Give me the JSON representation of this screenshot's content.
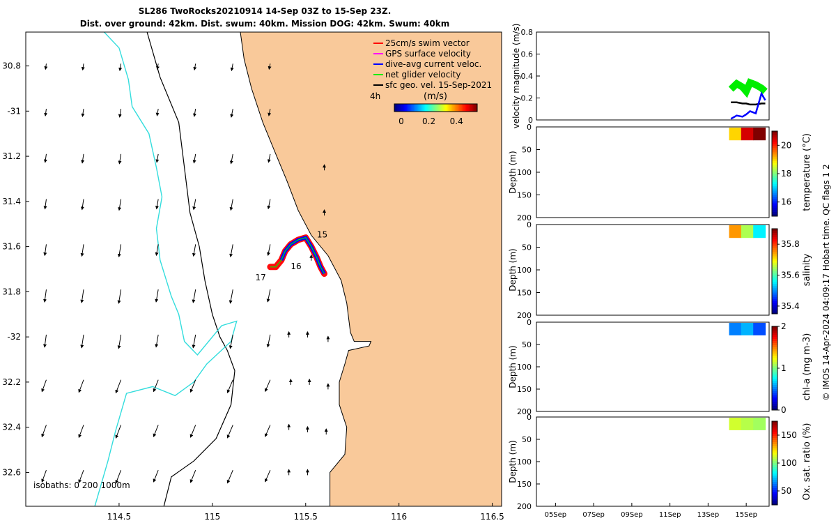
{
  "header": {
    "title": "SL286 TwoRocks20210914 14-Sep 03Z to 15-Sep 23Z.",
    "subtitle": "Dist. over ground: 42km. Dist. swum: 40km. Mission DOG: 42km. Swum: 40km"
  },
  "side_note": "© IMOS 14-Apr-2024 04:09:17 Hobart time. QC flags 1  2",
  "colors": {
    "land": "#f9c99a",
    "isobath_200": "#000000",
    "isobath_1000": "#33dddd",
    "swim": "#ff0000",
    "gps": "#ff00ff",
    "dive": "#0000ff",
    "net": "#00ee00",
    "sfc": "#000000"
  },
  "chart_data": [
    {
      "type": "map",
      "x_ticks": [
        114.5,
        115,
        115.5,
        116,
        116.5
      ],
      "x_tick_labels": [
        "114.5",
        "115",
        "115.5",
        "116",
        "116.5"
      ],
      "y_ticks": [
        -30.8,
        -31,
        -31.2,
        -31.4,
        -31.6,
        -31.8,
        -32,
        -32.2,
        -32.4,
        -32.6
      ],
      "y_tick_labels": [
        "30.8",
        "-31",
        "31.2",
        "31.4",
        "31.6",
        "31.8",
        "-32",
        "32.2",
        "32.4",
        "32.6"
      ],
      "xlim": [
        114.0,
        116.55
      ],
      "ylim": [
        -32.75,
        -30.65
      ],
      "legend": [
        {
          "label": "25cm/s swim vector",
          "color": "#ff0000"
        },
        {
          "label": "GPS surface velocity",
          "color": "#ff00ff"
        },
        {
          "label": "dive-avg current veloc.",
          "color": "#0000ff"
        },
        {
          "label": "net glider velocity",
          "color": "#00ee00"
        },
        {
          "label": "sfc geo. vel. 15-Sep-2021",
          "color": "#000000"
        }
      ],
      "legend_placement": "top-right",
      "time_label": "4h",
      "colorbar": {
        "label": "(m/s)",
        "ticks": [
          0,
          0.2,
          0.4
        ],
        "tick_labels": [
          "0",
          "0.2",
          "0.4"
        ],
        "range": [
          0,
          0.5
        ]
      },
      "isobath_label": "isobaths: 0   200  1000m",
      "day_labels": [
        {
          "text": "15",
          "lon": 115.56,
          "lat": -31.56
        },
        {
          "text": "16",
          "lon": 115.42,
          "lat": -31.7
        },
        {
          "text": "17",
          "lon": 115.23,
          "lat": -31.75
        }
      ],
      "track": [
        [
          115.6,
          -31.72
        ],
        [
          115.58,
          -31.69
        ],
        [
          115.56,
          -31.65
        ],
        [
          115.53,
          -31.6
        ],
        [
          115.5,
          -31.56
        ],
        [
          115.46,
          -31.57
        ],
        [
          115.42,
          -31.59
        ],
        [
          115.39,
          -31.62
        ],
        [
          115.37,
          -31.66
        ],
        [
          115.34,
          -31.69
        ],
        [
          115.31,
          -31.69
        ]
      ],
      "coast": [
        [
          115.15,
          -30.65
        ],
        [
          115.17,
          -30.77
        ],
        [
          115.21,
          -30.9
        ],
        [
          115.27,
          -31.05
        ],
        [
          115.33,
          -31.17
        ],
        [
          115.4,
          -31.31
        ],
        [
          115.46,
          -31.44
        ],
        [
          115.53,
          -31.55
        ],
        [
          115.62,
          -31.64
        ],
        [
          115.69,
          -31.75
        ],
        [
          115.72,
          -31.85
        ],
        [
          115.74,
          -31.98
        ],
        [
          115.76,
          -32.02
        ],
        [
          115.85,
          -32.02
        ],
        [
          115.84,
          -32.04
        ],
        [
          115.73,
          -32.06
        ],
        [
          115.71,
          -32.12
        ],
        [
          115.68,
          -32.2
        ],
        [
          115.68,
          -32.3
        ],
        [
          115.72,
          -32.4
        ],
        [
          115.71,
          -32.52
        ],
        [
          115.63,
          -32.6
        ],
        [
          115.63,
          -32.75
        ]
      ],
      "iso200": [
        [
          114.65,
          -30.65
        ],
        [
          114.72,
          -30.85
        ],
        [
          114.82,
          -31.05
        ],
        [
          114.85,
          -31.25
        ],
        [
          114.88,
          -31.45
        ],
        [
          114.93,
          -31.6
        ],
        [
          114.96,
          -31.75
        ],
        [
          115.0,
          -31.9
        ],
        [
          115.04,
          -32.0
        ],
        [
          115.08,
          -32.06
        ],
        [
          115.12,
          -32.15
        ],
        [
          115.1,
          -32.3
        ],
        [
          115.02,
          -32.45
        ],
        [
          114.9,
          -32.55
        ],
        [
          114.78,
          -32.62
        ],
        [
          114.74,
          -32.75
        ]
      ],
      "iso1000": [
        [
          114.42,
          -30.65
        ],
        [
          114.5,
          -30.72
        ],
        [
          114.55,
          -30.86
        ],
        [
          114.57,
          -30.98
        ],
        [
          114.66,
          -31.1
        ],
        [
          114.7,
          -31.25
        ],
        [
          114.73,
          -31.38
        ],
        [
          114.7,
          -31.52
        ],
        [
          114.72,
          -31.66
        ],
        [
          114.78,
          -31.82
        ],
        [
          114.82,
          -31.9
        ],
        [
          114.85,
          -32.02
        ],
        [
          114.92,
          -32.08
        ],
        [
          115.05,
          -31.95
        ],
        [
          115.13,
          -31.93
        ],
        [
          115.1,
          -32.02
        ],
        [
          114.97,
          -32.12
        ],
        [
          114.9,
          -32.2
        ],
        [
          114.8,
          -32.26
        ],
        [
          114.68,
          -32.22
        ],
        [
          114.54,
          -32.25
        ],
        [
          114.48,
          -32.42
        ],
        [
          114.44,
          -32.55
        ],
        [
          114.37,
          -32.75
        ]
      ]
    },
    {
      "type": "line",
      "ylabel": "velocity magnitude (m/s)",
      "ylim": [
        0,
        0.8
      ],
      "y_ticks": [
        0,
        0.2,
        0.4,
        0.6,
        0.8
      ],
      "y_tick_labels": [
        "0",
        "0.2",
        "0.4",
        "0.6",
        "0.8"
      ],
      "x_range_days": [
        4,
        16.2
      ],
      "series": [
        {
          "color": "#00ee00",
          "x": [
            14.2,
            14.5,
            14.8,
            15.0,
            15.2,
            15.5,
            15.8,
            16.0
          ],
          "y": [
            0.28,
            0.33,
            0.3,
            0.26,
            0.34,
            0.32,
            0.29,
            0.26
          ]
        },
        {
          "color": "#000000",
          "x": [
            14.2,
            14.5,
            14.8,
            15.0,
            15.2,
            15.5,
            15.8,
            16.0
          ],
          "y": [
            0.16,
            0.16,
            0.15,
            0.15,
            0.14,
            0.14,
            0.15,
            0.15
          ]
        },
        {
          "color": "#0000ff",
          "x": [
            14.2,
            14.5,
            14.8,
            15.0,
            15.2,
            15.5,
            15.8,
            16.0
          ],
          "y": [
            0.01,
            0.04,
            0.03,
            0.05,
            0.08,
            0.06,
            0.24,
            0.18
          ]
        }
      ]
    },
    {
      "type": "heatmap",
      "ylabel": "Depth (m)",
      "colorbar_label": "temperature (°C)",
      "ylim": [
        0,
        200
      ],
      "y_ticks": [
        0,
        50,
        100,
        150,
        200
      ],
      "y_tick_labels": [
        "0",
        "50",
        "100",
        "150",
        "200"
      ],
      "x_span_days": [
        14.1,
        16.0
      ],
      "colorbar_range": [
        15,
        21
      ],
      "colorbar_ticks": [
        16,
        18,
        20
      ],
      "colorbar_tick_labels": [
        "16",
        "18",
        "20"
      ],
      "values": [
        19.0,
        20.5,
        21.2
      ]
    },
    {
      "type": "heatmap",
      "ylabel": "Depth (m)",
      "colorbar_label": "salinity",
      "ylim": [
        0,
        200
      ],
      "y_ticks": [
        0,
        50,
        100,
        150,
        200
      ],
      "y_tick_labels": [
        "0",
        "50",
        "100",
        "150",
        "200"
      ],
      "x_span_days": [
        14.1,
        16.0
      ],
      "colorbar_range": [
        35.35,
        35.9
      ],
      "colorbar_ticks": [
        35.4,
        35.6,
        35.8
      ],
      "colorbar_tick_labels": [
        "35.4",
        "35.6",
        "35.8"
      ],
      "values": [
        35.75,
        35.65,
        35.55
      ]
    },
    {
      "type": "heatmap",
      "ylabel": "Depth (m)",
      "colorbar_label": "chl-a (mg m-3)",
      "ylim": [
        0,
        200
      ],
      "y_ticks": [
        0,
        50,
        100,
        150,
        200
      ],
      "y_tick_labels": [
        "0",
        "50",
        "100",
        "150",
        "200"
      ],
      "x_span_days": [
        14.1,
        16.0
      ],
      "colorbar_range": [
        0,
        2
      ],
      "colorbar_ticks": [
        0,
        1,
        2
      ],
      "colorbar_tick_labels": [
        "0",
        "1",
        "2"
      ],
      "values": [
        0.5,
        0.6,
        0.4
      ]
    },
    {
      "type": "heatmap",
      "ylabel": "Depth (m)",
      "colorbar_label": "Ox. sat. ratio (%)",
      "ylim": [
        0,
        200
      ],
      "y_ticks": [
        0,
        50,
        100,
        150,
        200
      ],
      "y_tick_labels": [
        "0",
        "50",
        "100",
        "150",
        "200"
      ],
      "x_span_days": [
        14.1,
        16.0
      ],
      "colorbar_range": [
        25,
        175
      ],
      "colorbar_ticks": [
        50,
        100,
        150
      ],
      "colorbar_tick_labels": [
        "50",
        "100",
        "150"
      ],
      "values": [
        112,
        108,
        105
      ],
      "x_ticks": [
        5,
        7,
        9,
        11,
        13,
        15
      ],
      "x_tick_labels": [
        "05Sep",
        "07Sep",
        "09Sep",
        "11Sep",
        "13Sep",
        "15Sep"
      ]
    }
  ]
}
